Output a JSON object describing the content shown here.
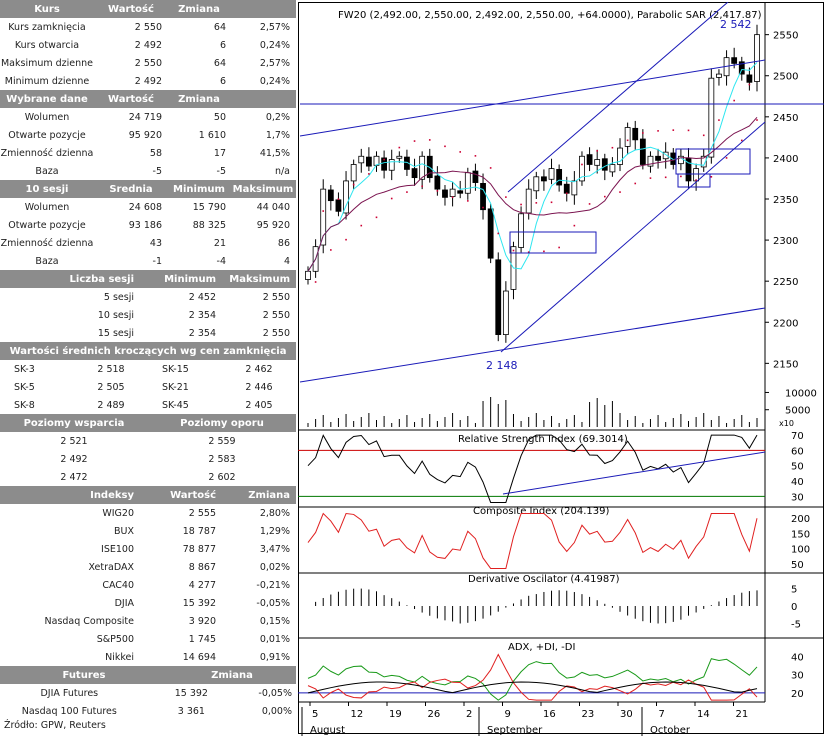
{
  "tables": {
    "kurs": {
      "headers": [
        "Kurs",
        "Wartość",
        "Zmiana",
        ""
      ],
      "rows": [
        [
          "Kurs zamknięcia",
          "2 550",
          "64",
          "2,57%"
        ],
        [
          "Kurs otwarcia",
          "2 492",
          "6",
          "0,24%"
        ],
        [
          "Maksimum dzienne",
          "2 550",
          "64",
          "2,57%"
        ],
        [
          "Minimum dzienne",
          "2 492",
          "6",
          "0,24%"
        ]
      ]
    },
    "wybrane": {
      "headers": [
        "Wybrane dane",
        "Wartość",
        "Zmiana",
        ""
      ],
      "rows": [
        [
          "Wolumen",
          "24 719",
          "50",
          "0,2%"
        ],
        [
          "Otwarte pozycje",
          "95 920",
          "1 610",
          "1,7%"
        ],
        [
          "Zmienność dzienna",
          "58",
          "17",
          "41,5%"
        ],
        [
          "Baza",
          "-5",
          "-5",
          "n/a"
        ]
      ]
    },
    "sesji10": {
      "headers": [
        "10 sesji",
        "Średnia",
        "Minimum",
        "Maksimum"
      ],
      "rows": [
        [
          "Wolumen",
          "24 608",
          "15 790",
          "44 040"
        ],
        [
          "Otwarte pozycje",
          "93 186",
          "88 325",
          "95 920"
        ],
        [
          "Zmienność dzienna",
          "43",
          "21",
          "86"
        ],
        [
          "Baza",
          "-1",
          "-4",
          "4"
        ]
      ]
    },
    "liczba": {
      "headers": [
        "Liczba sesji",
        "Minimum",
        "Maksimum"
      ],
      "rows": [
        [
          "5 sesji",
          "2 452",
          "2 550"
        ],
        [
          "10 sesji",
          "2 354",
          "2 550"
        ],
        [
          "15 sesji",
          "2 354",
          "2 550"
        ]
      ]
    },
    "srednie": {
      "title": "Wartości średnich kroczących wg cen zamknięcia",
      "rows": [
        [
          "SK-3",
          "2 518",
          "SK-15",
          "2 462"
        ],
        [
          "SK-5",
          "2 505",
          "SK-21",
          "2 446"
        ],
        [
          "SK-8",
          "2 489",
          "SK-45",
          "2 405"
        ]
      ]
    },
    "poziomy": {
      "headers": [
        "Poziomy wsparcia",
        "Poziomy oporu"
      ],
      "rows": [
        [
          "2 521",
          "2 559"
        ],
        [
          "2 492",
          "2 583"
        ],
        [
          "2 472",
          "2 602"
        ]
      ]
    },
    "indeksy": {
      "headers": [
        "Indeksy",
        "Wartość",
        "Zmiana"
      ],
      "rows": [
        [
          "WIG20",
          "2 555",
          "2,80%"
        ],
        [
          "BUX",
          "18 787",
          "1,29%"
        ],
        [
          "ISE100",
          "78 877",
          "3,47%"
        ],
        [
          "XetraDAX",
          "8 867",
          "0,02%"
        ],
        [
          "CAC40",
          "4 277",
          "-0,21%"
        ],
        [
          "DJIA",
          "15 392",
          "-0,05%"
        ],
        [
          "Nasdaq Composite",
          "3 920",
          "0,15%"
        ],
        [
          "S&P500",
          "1 745",
          "0,01%"
        ],
        [
          "Nikkei",
          "14 694",
          "0,91%"
        ]
      ]
    },
    "futures": {
      "headers": [
        "Futures",
        "Zmiana"
      ],
      "rows": [
        [
          "DJIA Futures",
          "15 392",
          "-0,05%"
        ],
        [
          "Nasdaq 100 Futures",
          "3 361",
          "0,00%"
        ]
      ]
    }
  },
  "source": "Źródło: GPW, Reuters",
  "chart_data": [
    {
      "type": "candlestick",
      "title": "FW20 (2,492.00, 2,550.00, 2,492.00, 2,550.00, +64.0000), Parabolic SAR (2,417.87)",
      "ylim": [
        2120,
        2580
      ],
      "yticks": [
        2150,
        2200,
        2250,
        2300,
        2350,
        2400,
        2450,
        2500,
        2550
      ],
      "annotations": [
        "2 542",
        "2 148"
      ],
      "x_labels": [
        "5",
        "12",
        "19",
        "26",
        "2",
        "9",
        "16",
        "23",
        "30",
        "7",
        "14",
        "21"
      ],
      "months": [
        "August",
        "September",
        "October"
      ],
      "closes": [
        2262,
        2292,
        2362,
        2348,
        2335,
        2372,
        2392,
        2402,
        2390,
        2402,
        2385,
        2398,
        2402,
        2386,
        2376,
        2402,
        2376,
        2362,
        2352,
        2362,
        2357,
        2382,
        2370,
        2337,
        2278,
        2185,
        2238,
        2292,
        2332,
        2362,
        2377,
        2372,
        2387,
        2367,
        2357,
        2372,
        2402,
        2392,
        2398,
        2385,
        2392,
        2412,
        2437,
        2422,
        2392,
        2402,
        2397,
        2407,
        2392,
        2402,
        2372,
        2387,
        2402,
        2497,
        2502,
        2522,
        2515,
        2502,
        2492,
        2550
      ]
    },
    {
      "type": "bar",
      "title": "Volume",
      "yticks": [
        5000,
        10000
      ],
      "scale_label": "x10"
    },
    {
      "type": "line",
      "title": "Relative Strength Index (69.3014)",
      "yticks": [
        30,
        40,
        50,
        60,
        70
      ],
      "ylim": [
        25,
        72
      ]
    },
    {
      "type": "line",
      "title": "Composite Index (204.139)",
      "yticks": [
        50,
        100,
        150,
        200
      ],
      "ylim": [
        30,
        220
      ]
    },
    {
      "type": "bar",
      "title": "Derivative Oscilator (4.41987)",
      "yticks": [
        -5,
        0,
        5
      ],
      "ylim": [
        -8,
        8
      ]
    },
    {
      "type": "line",
      "title": "ADX, +DI, -DI",
      "yticks": [
        20,
        30,
        40
      ],
      "ylim": [
        15,
        48
      ]
    }
  ]
}
